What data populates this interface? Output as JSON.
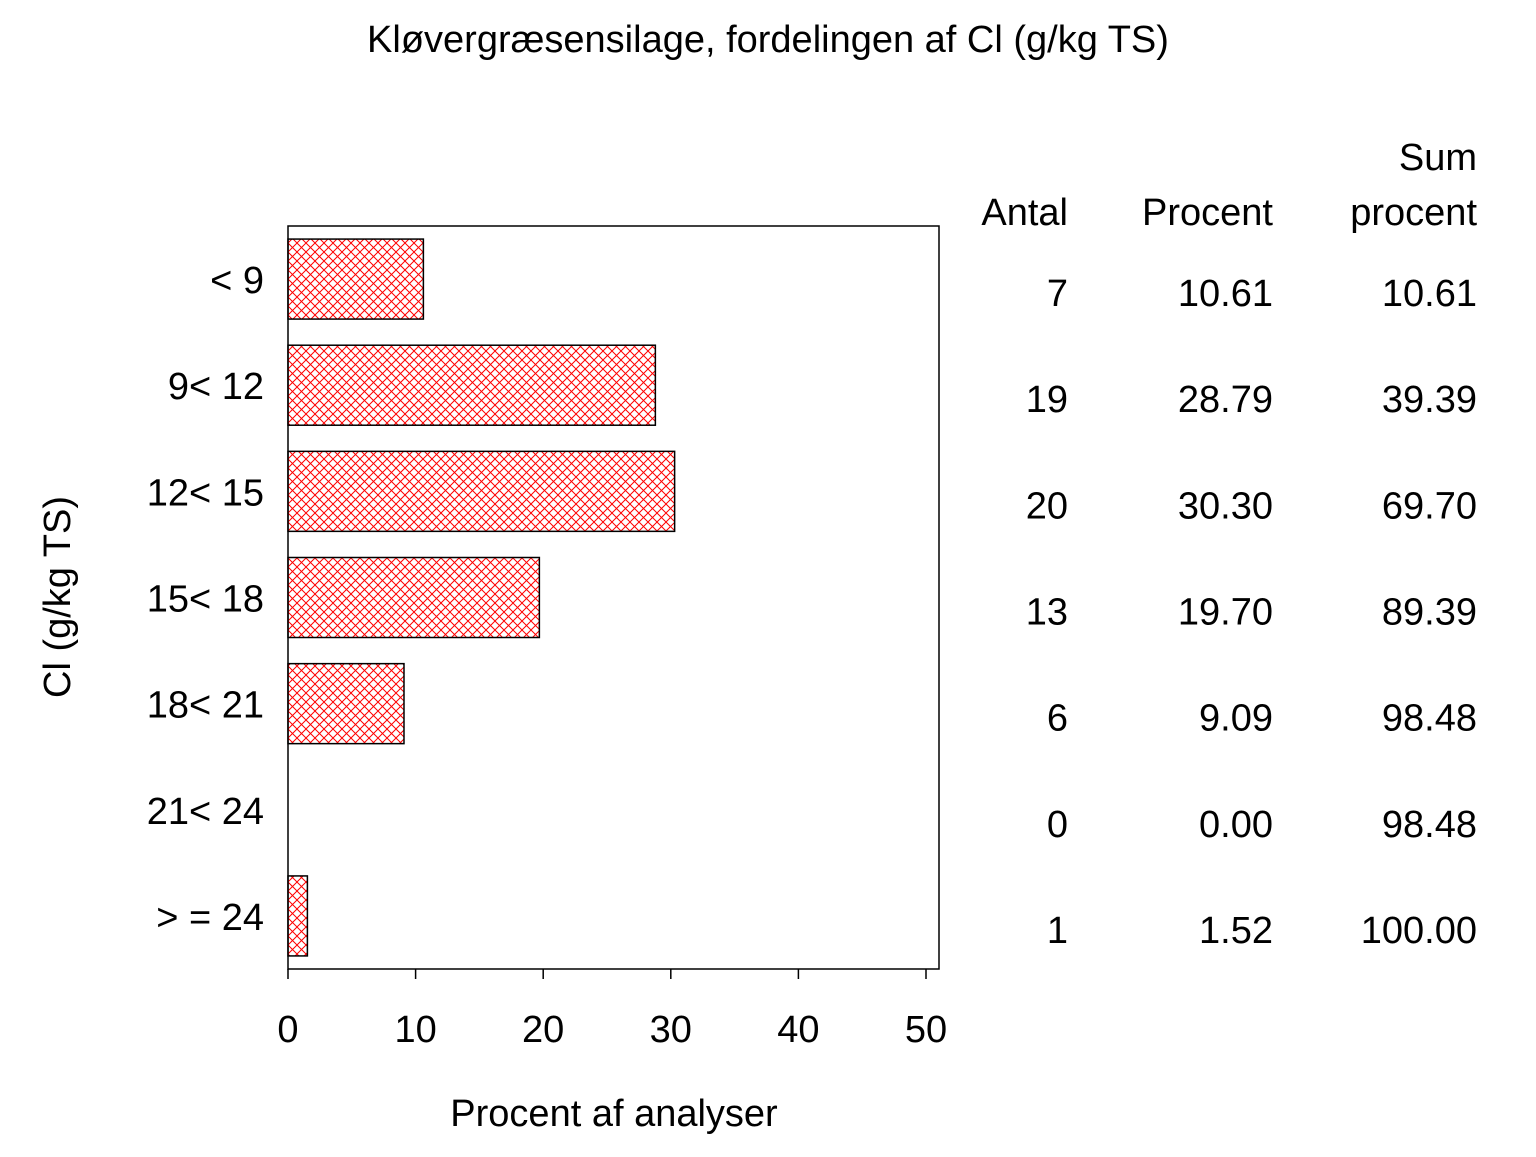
{
  "chart_data": {
    "type": "bar",
    "orientation": "horizontal",
    "title": "Kløvergræsensilage, fordelingen af Cl (g/kg TS)",
    "xlabel": "Procent af analyser",
    "ylabel": "Cl (g/kg TS)",
    "xlim": [
      0,
      50
    ],
    "xticks": [
      0,
      10,
      20,
      30,
      40,
      50
    ],
    "grid": false,
    "bar_color": "#ff0000",
    "bar_fill": "red crosshatch",
    "categories": [
      "< 9",
      "9< 12",
      "12< 15",
      "15< 18",
      "18< 21",
      "21< 24",
      "> = 24"
    ],
    "values": [
      10.61,
      28.79,
      30.3,
      19.7,
      9.09,
      0.0,
      1.52
    ],
    "table": {
      "headers": [
        {
          "top": "",
          "bottom": "Antal"
        },
        {
          "top": "",
          "bottom": "Procent"
        },
        {
          "top": "Sum",
          "bottom": "procent"
        }
      ],
      "rows": [
        [
          "7",
          "10.61",
          "10.61"
        ],
        [
          "19",
          "28.79",
          "39.39"
        ],
        [
          "20",
          "30.30",
          "69.70"
        ],
        [
          "13",
          "19.70",
          "89.39"
        ],
        [
          "6",
          "9.09",
          "98.48"
        ],
        [
          "0",
          "0.00",
          "98.48"
        ],
        [
          "1",
          "1.52",
          "100.00"
        ]
      ]
    }
  }
}
